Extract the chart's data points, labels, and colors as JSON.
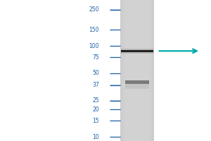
{
  "fig_width": 3.0,
  "fig_height": 2.0,
  "dpi": 100,
  "bg_color": "#ffffff",
  "gel_color": "#d0d0d0",
  "lane_color": "#c8c8c8",
  "marker_labels": [
    "250",
    "150",
    "100",
    "75",
    "50",
    "37",
    "25",
    "20",
    "15",
    "10"
  ],
  "marker_kda": [
    250,
    150,
    100,
    75,
    50,
    37,
    25,
    20,
    15,
    10
  ],
  "band1_kda": 88,
  "band2_kda": 40,
  "arrow_color": "#00AAAA",
  "text_color": "#1a5fa8",
  "tick_color": "#1a5fa8",
  "ymin": 9,
  "ymax": 320,
  "arrow_kda": 88
}
